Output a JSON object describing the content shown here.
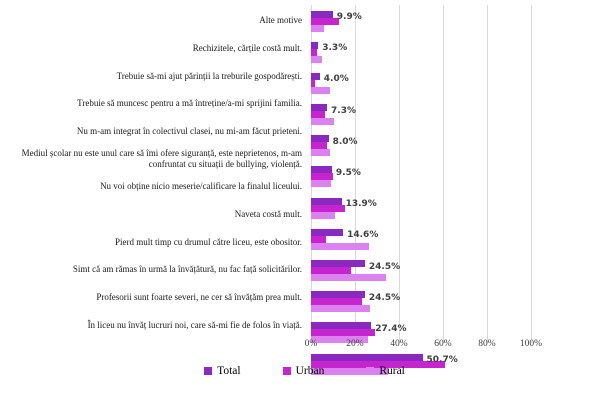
{
  "chart_data": {
    "type": "bar",
    "orientation": "horizontal",
    "title": "",
    "categories": [
      "Alte motive",
      "Rechizitele, cărțile costă mult.",
      "Trebuie să-mi ajut părinții la treburile gospodărești.",
      "Trebuie să muncesc pentru a mă întreține/a-mi sprijini familia.",
      "Nu m-am integrat în colectivul clasei, nu mi-am făcut prieteni.",
      "Mediul școlar nu este unul care să îmi ofere siguranță, este neprietenos, m-am confruntat cu situații de bullying, violență.",
      "Nu voi obține nicio meserie/calificare la finalul liceului.",
      "Naveta costă mult.",
      "Pierd mult timp cu drumul către liceu, este obositor.",
      "Simt că am rămas în urmă la învățătură, nu fac față solicitărilor.",
      "Profesorii sunt foarte severi, ne cer să învățăm prea mult.",
      "În liceu nu învăț lucruri noi, care să-mi fie de folos în viață."
    ],
    "series": [
      {
        "name": "Total",
        "color": "#8929BF",
        "values": [
          9.9,
          3.3,
          4.0,
          7.3,
          8.0,
          9.5,
          13.9,
          14.6,
          24.5,
          24.5,
          27.4,
          50.7
        ]
      },
      {
        "name": "Urban",
        "color": "#C524CE",
        "values": [
          12.6,
          2.6,
          1.7,
          6.3,
          7.3,
          9.8,
          15.5,
          6.6,
          18.4,
          23.4,
          28.9,
          60.7
        ]
      },
      {
        "name": "Rural",
        "color": "#DC82F0",
        "values": [
          5.8,
          4.9,
          8.7,
          10.4,
          8.5,
          9.3,
          11.0,
          26.5,
          34.0,
          27.0,
          25.7,
          35.0
        ]
      }
    ],
    "data_labels": {
      "labeled_series": "Total",
      "values": [
        "9.9%",
        "3.3%",
        "4.0%",
        "7.3%",
        "8.0%",
        "9.5%",
        "13.9%",
        "14.6%",
        "24.5%",
        "24.5%",
        "27.4%",
        "50.7%"
      ]
    },
    "x_axis": {
      "min": 0,
      "max": 100,
      "ticks": [
        "0%",
        "20%",
        "40%",
        "60%",
        "80%",
        "100%"
      ]
    },
    "legend": {
      "position": "bottom",
      "entries": [
        "Total",
        "Urban",
        "Rural"
      ]
    },
    "grid": true
  },
  "colors": {
    "background": "#ffffff",
    "gridline": "#d9d9d9",
    "category_text": "#1a1a1a",
    "data_label_text": "#404040",
    "axis_text": "#404040"
  }
}
